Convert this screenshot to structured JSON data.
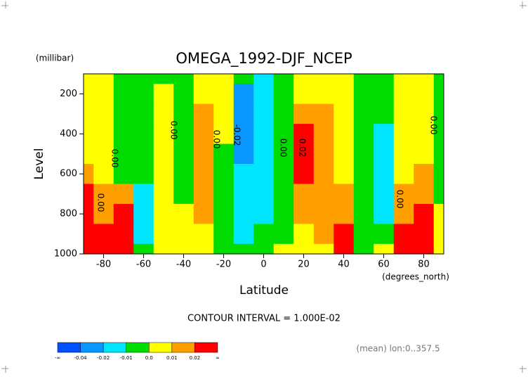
{
  "chart_data": {
    "type": "contour",
    "title": "OMEGA_1992-DJF_NCEP",
    "y_unit": "(millibar)",
    "ylabel": "Level",
    "xlabel": "Latitude",
    "x_unit": "(degrees_north)",
    "xlim": [
      -90,
      90
    ],
    "ylim": [
      1000,
      100
    ],
    "xticks": [
      -80,
      -60,
      -40,
      -20,
      0,
      20,
      40,
      60,
      80
    ],
    "yticks": [
      200,
      400,
      600,
      800,
      1000
    ],
    "field": {
      "lat": [
        -90,
        -80,
        -70,
        -60,
        -50,
        -40,
        -30,
        -20,
        -10,
        0,
        10,
        20,
        30,
        40,
        50,
        60,
        70,
        80,
        90
      ],
      "level": [
        100,
        200,
        300,
        400,
        500,
        600,
        700,
        800,
        900,
        1000
      ],
      "values": [
        [
          0.005,
          0.005,
          -0.005,
          -0.005,
          -0.005,
          -0.005,
          0.005,
          0.005,
          -0.005,
          -0.015,
          -0.005,
          0.005,
          0.005,
          0.005,
          -0.005,
          -0.005,
          0.005,
          0.005,
          -0.005
        ],
        [
          0.005,
          0.005,
          -0.005,
          -0.005,
          0.005,
          -0.005,
          0.005,
          0.005,
          -0.03,
          -0.015,
          -0.005,
          0.005,
          0.005,
          0.005,
          -0.005,
          -0.005,
          0.005,
          0.005,
          -0.005
        ],
        [
          0.005,
          0.005,
          -0.005,
          -0.005,
          0.005,
          -0.005,
          0.015,
          0.005,
          -0.03,
          -0.015,
          -0.005,
          0.015,
          0.015,
          0.005,
          -0.005,
          -0.005,
          0.005,
          0.005,
          -0.005
        ],
        [
          0.005,
          0.005,
          -0.005,
          -0.005,
          0.005,
          -0.005,
          0.015,
          0.005,
          -0.03,
          -0.015,
          -0.005,
          0.025,
          0.015,
          0.005,
          -0.005,
          -0.015,
          0.005,
          0.005,
          -0.005
        ],
        [
          0.005,
          0.005,
          -0.005,
          -0.005,
          0.005,
          -0.005,
          0.015,
          -0.005,
          -0.03,
          -0.015,
          -0.005,
          0.025,
          0.015,
          0.005,
          -0.005,
          -0.015,
          0.005,
          0.005,
          -0.005
        ],
        [
          0.015,
          0.005,
          -0.005,
          -0.005,
          0.005,
          -0.005,
          0.015,
          -0.005,
          -0.015,
          -0.015,
          -0.005,
          0.025,
          0.015,
          0.005,
          -0.005,
          -0.015,
          0.005,
          0.015,
          -0.005
        ],
        [
          0.025,
          0.015,
          0.015,
          -0.015,
          0.005,
          -0.005,
          0.015,
          -0.005,
          -0.015,
          -0.015,
          -0.005,
          0.015,
          0.015,
          0.015,
          -0.005,
          -0.015,
          0.015,
          0.015,
          -0.005
        ],
        [
          0.025,
          0.015,
          0.025,
          -0.015,
          0.005,
          0.005,
          0.015,
          -0.005,
          -0.015,
          -0.015,
          -0.005,
          0.015,
          0.015,
          0.015,
          -0.005,
          -0.015,
          0.015,
          0.025,
          0.005
        ],
        [
          0.025,
          0.025,
          0.025,
          -0.015,
          0.005,
          0.005,
          0.005,
          -0.005,
          -0.015,
          -0.005,
          -0.005,
          0.005,
          0.015,
          0.025,
          -0.005,
          -0.005,
          0.025,
          0.025,
          0.005
        ],
        [
          0.025,
          0.025,
          0.025,
          -0.005,
          0.005,
          0.005,
          0.005,
          -0.005,
          -0.005,
          -0.005,
          0.005,
          0.005,
          0.005,
          0.025,
          -0.005,
          0.005,
          0.025,
          0.025,
          0.005
        ]
      ]
    },
    "levels": [
      -0.04,
      -0.02,
      -0.01,
      0.0,
      0.01,
      0.02
    ],
    "level_labels": [
      "-0.04",
      "-0.02",
      "-0.01",
      "0.0",
      "0.01",
      "0.02"
    ],
    "colorbar_ends": [
      "-∞",
      "∞"
    ],
    "colors": [
      "#0050ff",
      "#0a96ff",
      "#00e6ff",
      "#00dc00",
      "#ffff00",
      "#ffa000",
      "#ff0000"
    ],
    "contour_labels": [
      "0.00",
      "0.00",
      "0.00",
      "-0.02",
      "0.00",
      "0.02",
      "0.00",
      "0.00",
      "0.00"
    ],
    "contour_interval": "CONTOUR INTERVAL = 1.000E-02",
    "note": "(mean) lon:0..357.5"
  }
}
